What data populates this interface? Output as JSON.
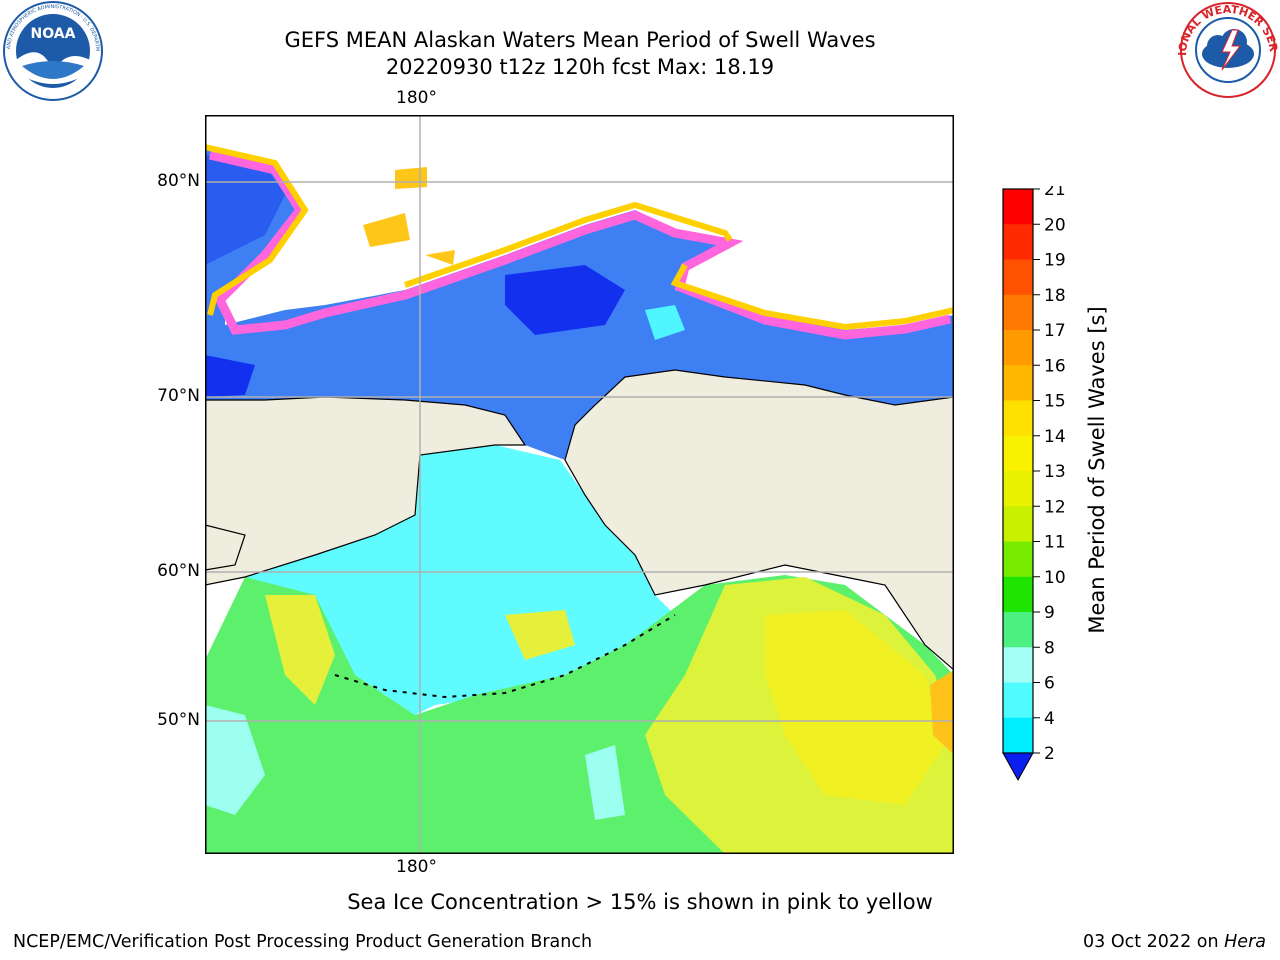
{
  "header": {
    "title": "GEFS MEAN Alaskan Waters Mean Period of Swell Waves",
    "subtitle": "20220930 t12z 120h fcst   Max: 18.19"
  },
  "logos": {
    "noaa": {
      "icon": "noaa-logo-icon",
      "text": "NOAA",
      "ring_text": "NATIONAL OCEANIC AND ATMOSPHERIC ADMINISTRATION · U.S. DEPARTMENT OF COMMERCE",
      "color": "#1d5ba8"
    },
    "nws": {
      "icon": "nws-logo-icon",
      "ring_text": "NATIONAL WEATHER SERVICE",
      "color": "#d8232a"
    }
  },
  "map": {
    "lon_label_top": "180°",
    "lon_label_bottom": "180°",
    "lat_labels": [
      "80°N",
      "70°N",
      "60°N",
      "50°N"
    ],
    "land_color": "#efedde",
    "ocean_color": "#3f7ff4"
  },
  "colorbar": {
    "title": "Mean Period of Swell Waves [s]",
    "ticks": [
      "21",
      "20",
      "19",
      "18",
      "17",
      "16",
      "15",
      "14",
      "13",
      "12",
      "11",
      "10",
      "9",
      "8",
      "6",
      "4",
      "2"
    ],
    "colors": [
      "#ff0000",
      "#ff2a00",
      "#ff5200",
      "#ff7800",
      "#ff9a00",
      "#ffb800",
      "#ffe000",
      "#f8f200",
      "#e8f200",
      "#c8f000",
      "#78ec00",
      "#1ee400",
      "#4cf080",
      "#a4fff4",
      "#50fcff",
      "#00ecff",
      "#0080ff"
    ],
    "extend_color": "#0a1ef0"
  },
  "caption": "Sea Ice Concentration > 15% is shown in pink to yellow",
  "footer": {
    "left": "NCEP/EMC/Verification Post Processing Product Generation Branch",
    "right_prefix": "03 Oct 2022 on ",
    "right_host": "Hera"
  }
}
